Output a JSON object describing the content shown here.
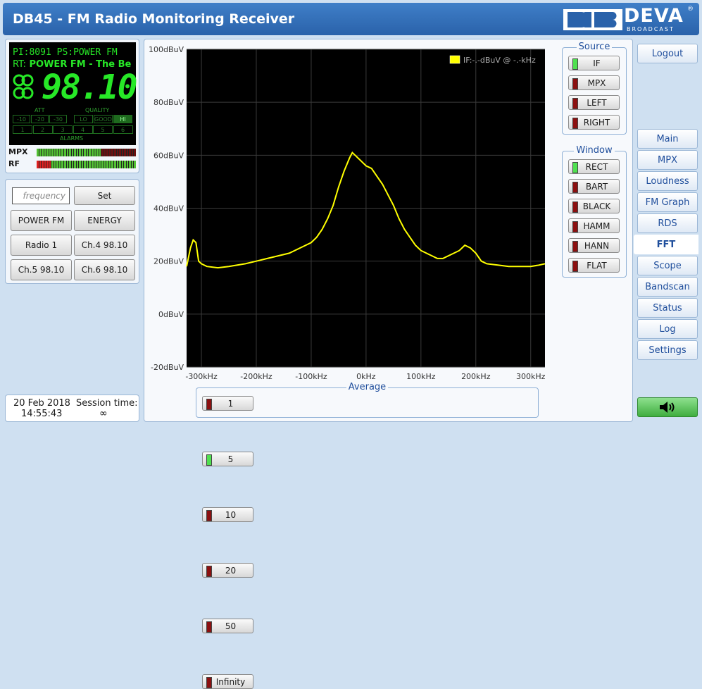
{
  "header": {
    "title": "DB45 - FM Radio Monitoring Receiver",
    "logo": "DEVA",
    "logo_mark": "®",
    "logo_sub": "BROADCAST"
  },
  "lcd": {
    "pi_label": "PI:",
    "pi": "8091",
    "ps_label": "PS:",
    "ps": "POWER FM",
    "rt_label": "RT:",
    "rt": "POWER FM - The Be",
    "frequency": "98.10",
    "att_label": "ATT",
    "att": [
      "-10",
      "-20",
      "-30"
    ],
    "quality_label": "QUALITY",
    "quality": [
      "LO",
      "GOOD",
      "HI"
    ],
    "quality_selected": 2,
    "alarms": [
      "1",
      "2",
      "3",
      "4",
      "5",
      "6"
    ],
    "alarms_label": "ALARMS"
  },
  "meters": [
    {
      "label": "MPX",
      "level": 63
    },
    {
      "label": "RF",
      "level": 98
    }
  ],
  "tuner": {
    "placeholder": "frequency",
    "set": "Set",
    "presets": [
      "POWER FM",
      "ENERGY",
      "Radio 1",
      "Ch.4 98.10",
      "Ch.5 98.10",
      "Ch.6 98.10"
    ]
  },
  "status": {
    "date": "20 Feb 2018",
    "time": "14:55:43",
    "session_label": "Session time:",
    "session": "∞"
  },
  "fft": {
    "type": "line",
    "legend": "IF:-.-dBuV @ -.-kHz",
    "color": "#ffff00",
    "grid": true,
    "x": [
      -327,
      -320,
      -315,
      -310,
      -305,
      -300,
      -290,
      -270,
      -250,
      -220,
      -200,
      -180,
      -160,
      -140,
      -120,
      -100,
      -90,
      -80,
      -70,
      -60,
      -50,
      -40,
      -30,
      -25,
      -20,
      -10,
      0,
      10,
      20,
      30,
      40,
      50,
      60,
      70,
      80,
      90,
      100,
      110,
      120,
      130,
      140,
      150,
      160,
      170,
      180,
      190,
      200,
      210,
      220,
      240,
      260,
      280,
      300,
      315,
      326
    ],
    "values": [
      18,
      25,
      28,
      27,
      20,
      19,
      18,
      17.5,
      18,
      19,
      20,
      21,
      22,
      23,
      25,
      27,
      29,
      32,
      36,
      41,
      48,
      54,
      59,
      61,
      60,
      58,
      56,
      55,
      52,
      49,
      45,
      41,
      36,
      32,
      29,
      26,
      24,
      23,
      22,
      21,
      21,
      22,
      23,
      24,
      26,
      25,
      23,
      20,
      19,
      18.5,
      18,
      18,
      18,
      18.5,
      19
    ],
    "xlim": [
      -327,
      326
    ],
    "ylim": [
      -20,
      100
    ],
    "xticks": [
      {
        "value": -300,
        "label": "-300kHz"
      },
      {
        "value": -200,
        "label": "-200kHz"
      },
      {
        "value": -100,
        "label": "-100kHz"
      },
      {
        "value": 0,
        "label": "0kHz"
      },
      {
        "value": 100,
        "label": "100kHz"
      },
      {
        "value": 200,
        "label": "200kHz"
      },
      {
        "value": 300,
        "label": "300kHz"
      }
    ],
    "yticks": [
      {
        "value": -20,
        "label": "-20dBuV"
      },
      {
        "value": 0,
        "label": "0dBuV"
      },
      {
        "value": 20,
        "label": "20dBuV"
      },
      {
        "value": 40,
        "label": "40dBuV"
      },
      {
        "value": 60,
        "label": "60dBuV"
      },
      {
        "value": 80,
        "label": "80dBuV"
      },
      {
        "value": 100,
        "label": "100dBuV"
      }
    ]
  },
  "source": {
    "title": "Source",
    "options": [
      "IF",
      "MPX",
      "LEFT",
      "RIGHT"
    ],
    "selected": 0
  },
  "window": {
    "title": "Window",
    "options": [
      "RECT",
      "BART",
      "BLACK",
      "HAMM",
      "HANN",
      "FLAT"
    ],
    "selected": 0
  },
  "average": {
    "title": "Average",
    "options": [
      "1",
      "5",
      "10",
      "20",
      "50",
      "Infinity"
    ],
    "selected": 1
  },
  "nav": {
    "logout": "Logout",
    "items": [
      "Main",
      "MPX",
      "Loudness",
      "FM Graph",
      "RDS",
      "FFT",
      "Scope",
      "Bandscan",
      "Status",
      "Log",
      "Settings"
    ],
    "active": 5
  }
}
